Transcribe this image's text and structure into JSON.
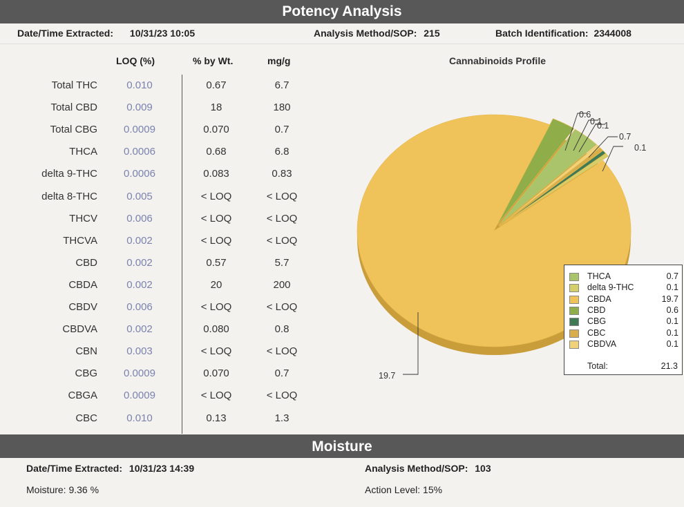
{
  "potency": {
    "title": "Potency Analysis",
    "extracted_label": "Date/Time Extracted:",
    "extracted_value": "10/31/23  10:05",
    "method_label": "Analysis Method/SOP:",
    "method_value": "215",
    "batch_label": "Batch Identification:",
    "batch_value": "2344008",
    "columns": [
      "LOQ (%)",
      "% by Wt.",
      "mg/g"
    ],
    "rows": [
      {
        "name": "Total THC",
        "loq": "0.010",
        "pct": "0.67",
        "mg": "6.7"
      },
      {
        "name": "Total CBD",
        "loq": "0.009",
        "pct": "18",
        "mg": "180"
      },
      {
        "name": "Total CBG",
        "loq": "0.0009",
        "pct": "0.070",
        "mg": "0.7"
      },
      {
        "name": "THCA",
        "loq": "0.0006",
        "pct": "0.68",
        "mg": "6.8"
      },
      {
        "name": "delta 9-THC",
        "loq": "0.0006",
        "pct": "0.083",
        "mg": "0.83"
      },
      {
        "name": "delta 8-THC",
        "loq": "0.005",
        "pct": "< LOQ",
        "mg": "< LOQ"
      },
      {
        "name": "THCV",
        "loq": "0.006",
        "pct": "< LOQ",
        "mg": "< LOQ"
      },
      {
        "name": "THCVA",
        "loq": "0.002",
        "pct": "< LOQ",
        "mg": "< LOQ"
      },
      {
        "name": "CBD",
        "loq": "0.002",
        "pct": "0.57",
        "mg": "5.7"
      },
      {
        "name": "CBDA",
        "loq": "0.002",
        "pct": "20",
        "mg": "200"
      },
      {
        "name": "CBDV",
        "loq": "0.006",
        "pct": "< LOQ",
        "mg": "< LOQ"
      },
      {
        "name": "CBDVA",
        "loq": "0.002",
        "pct": "0.080",
        "mg": "0.8"
      },
      {
        "name": "CBN",
        "loq": "0.003",
        "pct": "< LOQ",
        "mg": "< LOQ"
      },
      {
        "name": "CBG",
        "loq": "0.0009",
        "pct": "0.070",
        "mg": "0.7"
      },
      {
        "name": "CBGA",
        "loq": "0.0009",
        "pct": "< LOQ",
        "mg": "< LOQ"
      },
      {
        "name": "CBC",
        "loq": "0.010",
        "pct": "0.13",
        "mg": "1.3"
      }
    ]
  },
  "chart_data": {
    "type": "pie",
    "title": "Cannabinoids Profile",
    "categories": [
      "THCA",
      "delta 9-THC",
      "CBDA",
      "CBD",
      "CBG",
      "CBC",
      "CBDVA"
    ],
    "values": [
      0.7,
      0.1,
      19.7,
      0.6,
      0.1,
      0.1,
      0.1
    ],
    "value_labels": [
      "0.7",
      "0.1",
      "19.7",
      "0.6",
      "0.1",
      "0.1",
      "0.1"
    ],
    "slice_callouts": [
      "0.6",
      "0.1",
      "0.1",
      "0.7",
      "0.1",
      "19.7"
    ],
    "colors": [
      "#a9c46a",
      "#d4cf6a",
      "#f0c35a",
      "#8fae4a",
      "#3f7a55",
      "#d8ad4a",
      "#f1d27a"
    ],
    "total_label": "Total:",
    "total_value": "21.3",
    "legend_position": "bottom-right"
  },
  "moisture": {
    "title": "Moisture",
    "extracted_label": "Date/Time Extracted:",
    "extracted_value": "10/31/23  14:39",
    "method_label": "Analysis Method/SOP:",
    "method_value": "103",
    "moisture_text": "Moisture:  9.36 %",
    "action_text": "Action Level: 15%"
  }
}
